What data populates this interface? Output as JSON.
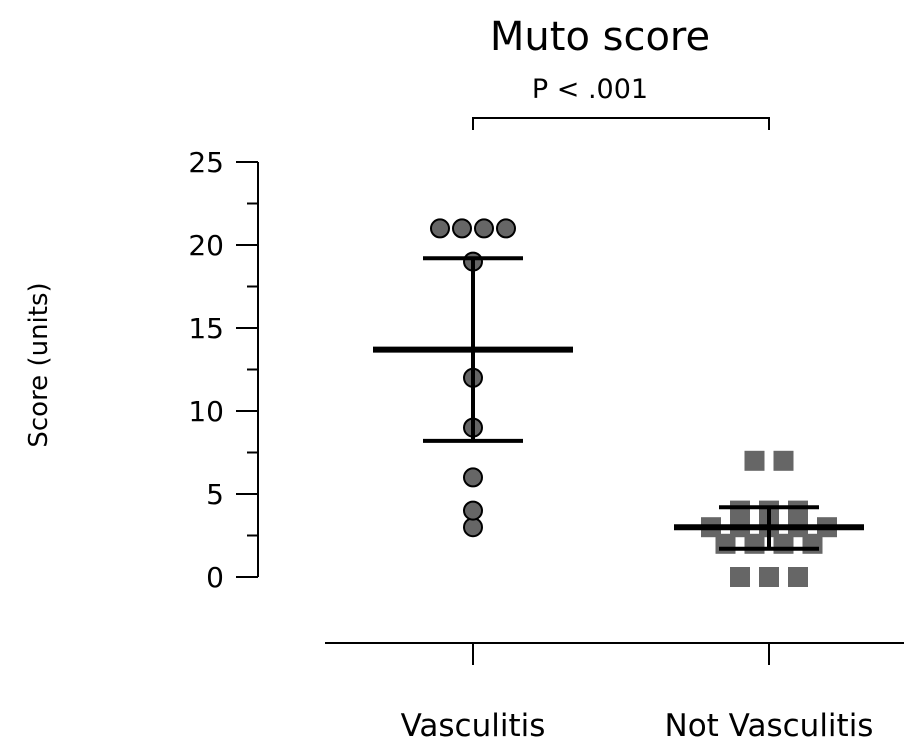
{
  "chart_data": {
    "type": "scatter",
    "title": "Muto score",
    "annotation": "P < .001",
    "ylabel": "Score (units)",
    "xlabel": "",
    "categories": [
      "Vasculitis",
      "Not Vasculitis"
    ],
    "ylim": [
      0,
      25
    ],
    "yticks": [
      0,
      5,
      10,
      15,
      20,
      25
    ],
    "grid": false,
    "series": [
      {
        "name": "Vasculitis",
        "marker": "circle",
        "color": "#666666",
        "values": [
          21,
          21,
          21,
          21,
          19,
          12,
          9,
          6,
          4,
          3
        ],
        "mean": 13.7,
        "error_upper": 19.2,
        "error_lower": 8.2
      },
      {
        "name": "Not Vasculitis",
        "marker": "square",
        "color": "#666666",
        "values": [
          7,
          7,
          4,
          4,
          4,
          3,
          3,
          3,
          3,
          3,
          2,
          2,
          2,
          2,
          0,
          0,
          0
        ],
        "mean": 3.0,
        "error_upper": 4.2,
        "error_lower": 1.7
      }
    ]
  }
}
